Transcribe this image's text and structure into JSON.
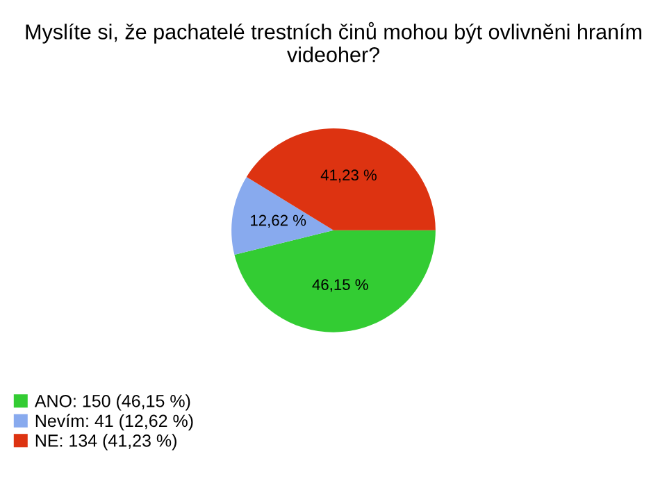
{
  "chart_data": {
    "type": "pie",
    "title": "Myslíte si, že pachatelé trestních činů mohou být ovlivněni hraním videoher?",
    "categories": [
      "ANO: 150 (46,15 %)",
      "Nevím: 41 (12,62 %)",
      "NE: 134 (41,23 %)"
    ],
    "values": [
      46.15,
      12.62,
      41.23
    ],
    "value_labels": [
      "46,15 %",
      "12,62 %",
      "41,23 %"
    ],
    "colors": [
      "#33cc33",
      "#88aaee",
      "#dd3311"
    ],
    "legend": "bottom left"
  }
}
